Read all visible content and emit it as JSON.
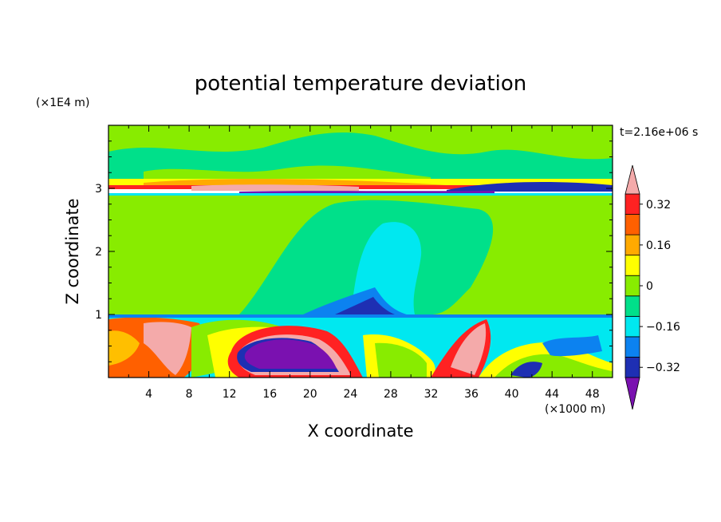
{
  "chart_data": {
    "type": "heatmap",
    "title": "potential temperature deviation",
    "xlabel": "X coordinate",
    "ylabel": "Z coordinate",
    "x_unit": "(×1000 m)",
    "y_unit": "(×1E4 m)",
    "time_label": "t=2.16e+06 s",
    "xlim": [
      0,
      50
    ],
    "ylim": [
      0,
      4
    ],
    "x_ticks": [
      4,
      8,
      12,
      16,
      20,
      24,
      28,
      32,
      36,
      40,
      44,
      48
    ],
    "y_ticks": [
      1,
      2,
      3
    ],
    "colorbar": {
      "levels": [
        -0.4,
        -0.32,
        -0.24,
        -0.16,
        -0.08,
        0,
        0.08,
        0.16,
        0.24,
        0.32,
        0.4
      ],
      "labels": [
        "0.32",
        "0.16",
        "0",
        "−0.16",
        "−0.32"
      ],
      "label_values": [
        0.32,
        0.16,
        0,
        -0.16,
        -0.32
      ],
      "colors_low_to_high": [
        "#7a11b0",
        "#1e2fb3",
        "#0c82f0",
        "#00e8f0",
        "#00e08a",
        "#88ec00",
        "#ffff00",
        "#ffaa00",
        "#ff6000",
        "#ff2222",
        "#f4aaaa"
      ],
      "extend": "both"
    }
  }
}
